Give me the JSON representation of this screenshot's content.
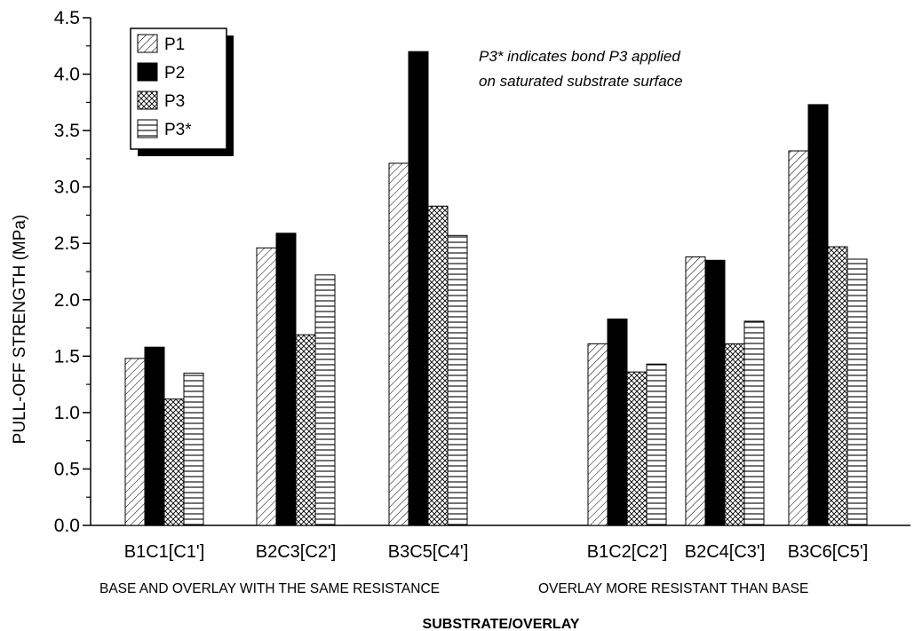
{
  "chart_data": {
    "type": "bar",
    "categories": [
      "B1C1[C1']",
      "B2C3[C2']",
      "B3C5[C4']",
      "B1C2[C2']",
      "B2C4[C3']",
      "B3C6[C5']"
    ],
    "series": [
      {
        "name": "P1",
        "values": [
          1.48,
          2.46,
          3.21,
          1.61,
          2.38,
          3.32
        ],
        "pattern": "diagonal"
      },
      {
        "name": "P2",
        "values": [
          1.58,
          2.59,
          4.2,
          1.83,
          2.35,
          3.73
        ],
        "pattern": "solid"
      },
      {
        "name": "P3",
        "values": [
          1.12,
          1.69,
          2.83,
          1.36,
          1.61,
          2.47
        ],
        "pattern": "crosshatch"
      },
      {
        "name": "P3*",
        "values": [
          1.35,
          2.22,
          2.57,
          1.43,
          1.81,
          2.36
        ],
        "pattern": "horizontal"
      }
    ],
    "groups": [
      {
        "label": "BASE AND OVERLAY WITH THE SAME RESISTANCE",
        "categories": [
          "B1C1[C1']",
          "B2C3[C2']",
          "B3C5[C4']"
        ]
      },
      {
        "label": "OVERLAY MORE RESISTANT THAN BASE",
        "categories": [
          "B1C2[C2']",
          "B2C4[C3']",
          "B3C6[C5']"
        ]
      }
    ],
    "xlabel": "SUBSTRATE/OVERLAY",
    "ylabel": "PULL-OFF STRENGTH (MPa)",
    "ylim": [
      0,
      4.5
    ],
    "yticks": [
      "0.0",
      "0.5",
      "1.0",
      "1.5",
      "2.0",
      "2.5",
      "3.0",
      "3.5",
      "4.0",
      "4.5"
    ],
    "annotation": [
      "P3* indicates bond P3 applied",
      "on saturated substrate surface"
    ],
    "legend_position": "top-left",
    "grid": false,
    "colors": {
      "bar_stroke": "#000000",
      "fill": "#000000",
      "background": "#ffffff"
    }
  }
}
